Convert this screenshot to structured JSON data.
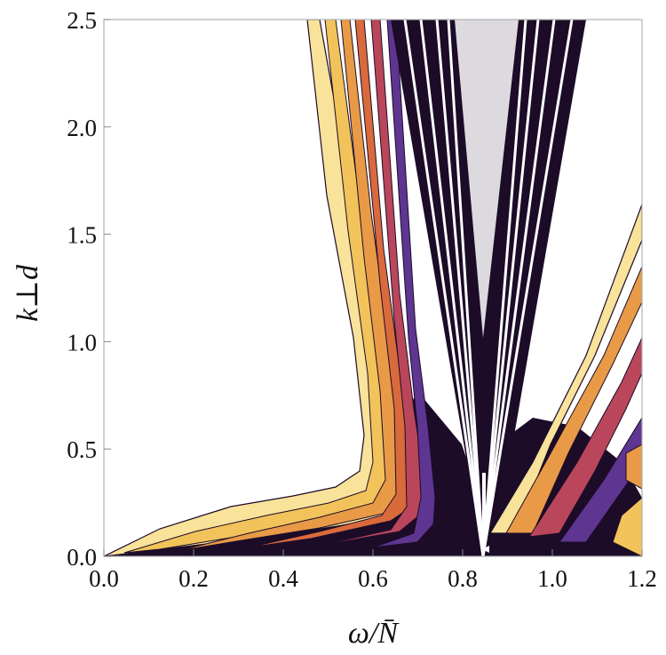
{
  "chart_data": {
    "type": "heatmap",
    "subtype": "filled-contour",
    "title": "",
    "xlabel": "ω/N̄",
    "ylabel": "k⊥d",
    "xlim": [
      0.0,
      1.2
    ],
    "ylim": [
      0.0,
      2.5
    ],
    "x_ticks": [
      "0.0",
      "0.2",
      "0.4",
      "0.6",
      "0.8",
      "1.0",
      "1.2"
    ],
    "y_ticks": [
      "0.0",
      "0.5",
      "1.0",
      "1.5",
      "2.0",
      "2.5"
    ],
    "x_tick_values": [
      0.0,
      0.2,
      0.4,
      0.6,
      0.8,
      1.0,
      1.2
    ],
    "y_tick_values": [
      0.0,
      0.5,
      1.0,
      1.5,
      2.0,
      2.5
    ],
    "grid": false,
    "legend": "none",
    "colormap": [
      "#1c0c28",
      "#3d1f5c",
      "#5e3590",
      "#8a3f7a",
      "#b9465a",
      "#d96a3c",
      "#e89a46",
      "#f2c35a",
      "#f9e29a",
      "#ffffff"
    ],
    "annotations": [
      {
        "type": "arrow",
        "direction": "down",
        "x": 0.85,
        "y_from": 0.38,
        "y_to": 0.0,
        "color": "#ffffff"
      }
    ],
    "features": {
      "left_branch_apex": 0.85,
      "left_branch_top_x": [
        0.47,
        0.56
      ],
      "resonant_fan_x": [
        0.62,
        1.08
      ],
      "right_branch_edge_at_xmax": 1.63
    }
  }
}
